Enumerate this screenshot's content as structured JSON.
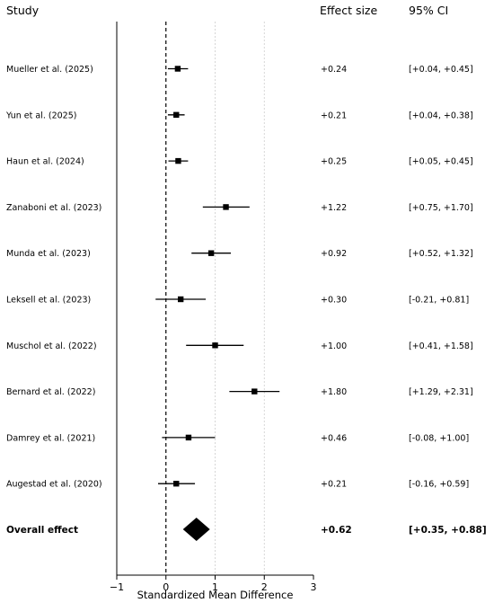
{
  "headers": {
    "study": "Study",
    "effect": "Effect size",
    "ci": "95% CI"
  },
  "chart_data": {
    "type": "forest",
    "xlabel": "Standardized Mean Difference",
    "xlim": [
      -1,
      3
    ],
    "xticks": [
      -1,
      0,
      1,
      2,
      3
    ],
    "xtick_labels": [
      "−1",
      "0",
      "1",
      "2",
      "3"
    ],
    "reference_line": 0,
    "grid_lines": [
      1,
      2
    ],
    "studies": [
      {
        "name": "Mueller et al. (2025)",
        "effect": 0.24,
        "ci_low": 0.04,
        "ci_high": 0.45,
        "effect_label": "+0.24",
        "ci_label": "[+0.04, +0.45]"
      },
      {
        "name": "Yun et al. (2025)",
        "effect": 0.21,
        "ci_low": 0.04,
        "ci_high": 0.38,
        "effect_label": "+0.21",
        "ci_label": "[+0.04, +0.38]"
      },
      {
        "name": "Haun et al. (2024)",
        "effect": 0.25,
        "ci_low": 0.05,
        "ci_high": 0.45,
        "effect_label": "+0.25",
        "ci_label": "[+0.05, +0.45]"
      },
      {
        "name": "Zanaboni et al. (2023)",
        "effect": 1.22,
        "ci_low": 0.75,
        "ci_high": 1.7,
        "effect_label": "+1.22",
        "ci_label": "[+0.75, +1.70]"
      },
      {
        "name": "Munda et al. (2023)",
        "effect": 0.92,
        "ci_low": 0.52,
        "ci_high": 1.32,
        "effect_label": "+0.92",
        "ci_label": "[+0.52, +1.32]"
      },
      {
        "name": "Leksell et al. (2023)",
        "effect": 0.3,
        "ci_low": -0.21,
        "ci_high": 0.81,
        "effect_label": "+0.30",
        "ci_label": "[-0.21, +0.81]"
      },
      {
        "name": "Muschol et al. (2022)",
        "effect": 1.0,
        "ci_low": 0.41,
        "ci_high": 1.58,
        "effect_label": "+1.00",
        "ci_label": "[+0.41, +1.58]"
      },
      {
        "name": "Bernard et al. (2022)",
        "effect": 1.8,
        "ci_low": 1.29,
        "ci_high": 2.31,
        "effect_label": "+1.80",
        "ci_label": "[+1.29, +2.31]"
      },
      {
        "name": "Damrey et al. (2021)",
        "effect": 0.46,
        "ci_low": -0.08,
        "ci_high": 1.0,
        "effect_label": "+0.46",
        "ci_label": "[-0.08, +1.00]"
      },
      {
        "name": "Augestad et al. (2020)",
        "effect": 0.21,
        "ci_low": -0.16,
        "ci_high": 0.59,
        "effect_label": "+0.21",
        "ci_label": "[-0.16, +0.59]"
      }
    ],
    "overall": {
      "name": "Overall effect",
      "effect": 0.62,
      "ci_low": 0.35,
      "ci_high": 0.88,
      "effect_label": "+0.62",
      "ci_label": "[+0.35, +0.88]"
    }
  }
}
